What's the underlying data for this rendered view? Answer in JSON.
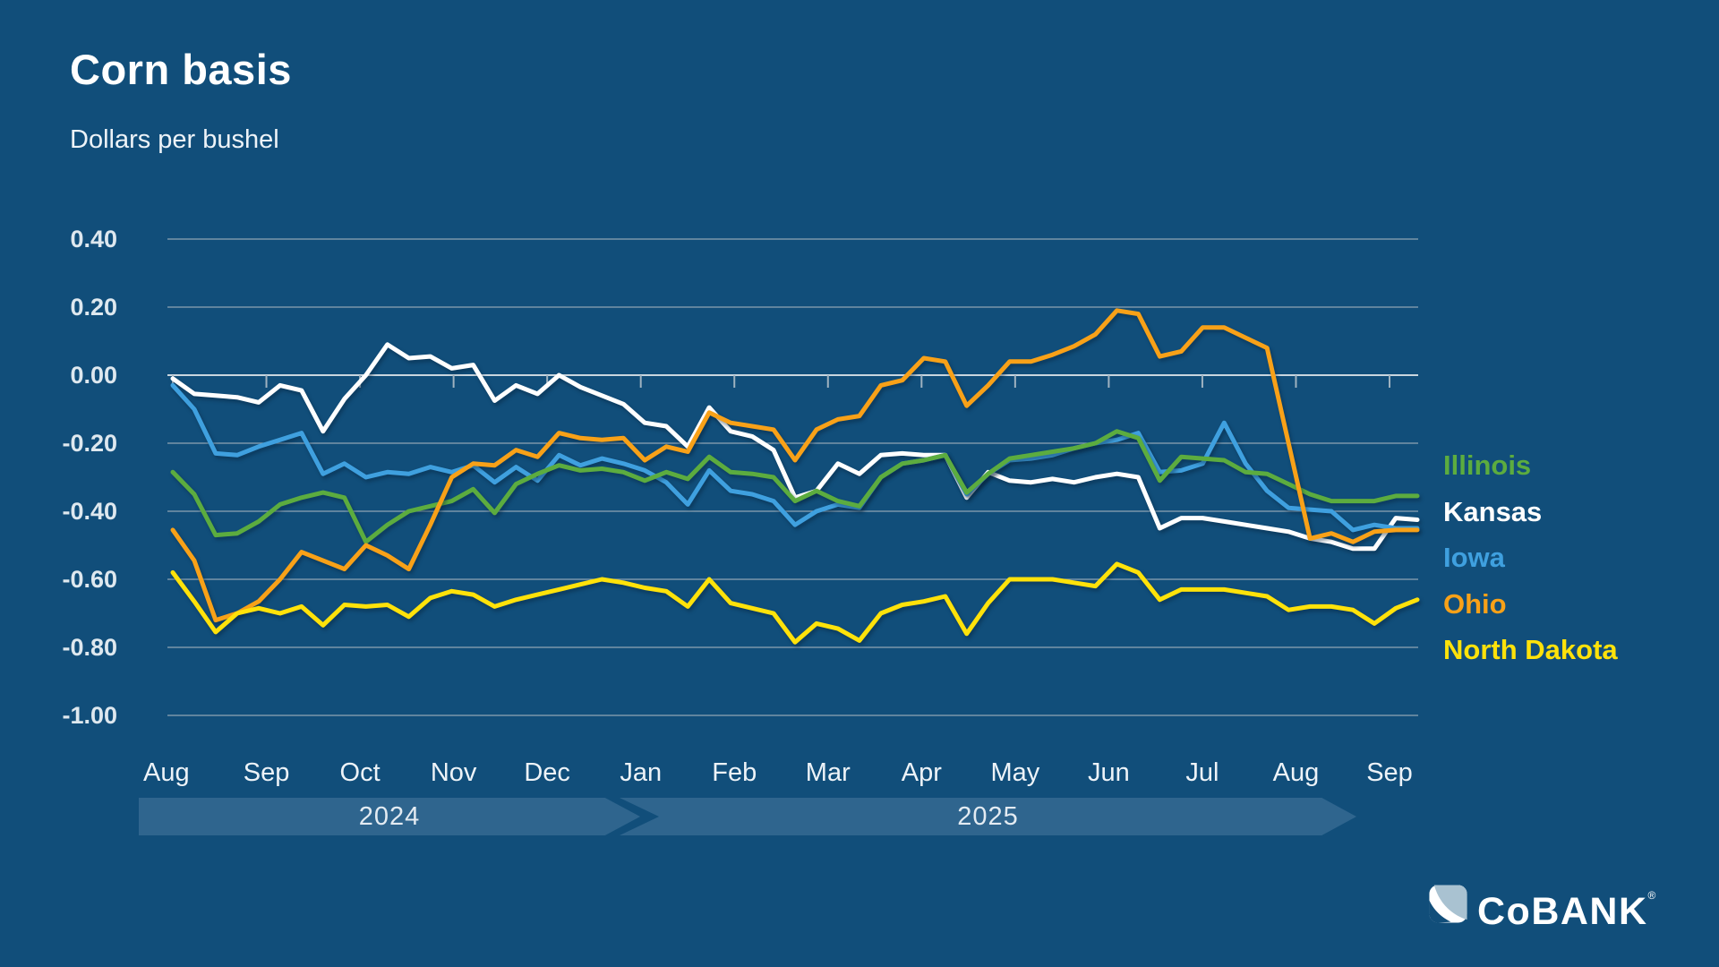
{
  "title": "Corn basis",
  "subtitle": "Dollars per bushel",
  "timeline": {
    "left_label": "2024",
    "right_label": "2025"
  },
  "logo": {
    "text": "CoBANK",
    "reg": "®"
  },
  "colors": {
    "background": "#114E7A",
    "gridline": "#8FA5B5",
    "zero_line": "#C9D6DF",
    "tick": "#9FB2C0",
    "timeline_bar": "#2F658E",
    "y_label_text": "#DEE8EF",
    "month_label_text": "#EDF3F8",
    "logo_mark_fill": "#A9C2D1"
  },
  "chart_data": {
    "type": "line",
    "title": "Corn basis",
    "ylabel": "Dollars per bushel",
    "ylim": [
      -1.0,
      0.4
    ],
    "grid": true,
    "legend_position": "right",
    "ytick_values": [
      0.4,
      0.2,
      0.0,
      -0.2,
      -0.4,
      -0.6,
      -0.8,
      -1.0
    ],
    "ytick_labels": [
      "0.40",
      "0.20",
      "0.00",
      "-0.20",
      "-0.40",
      "-0.60",
      "-0.80",
      "-1.00"
    ],
    "x_months": [
      "Aug",
      "Sep",
      "Oct",
      "Nov",
      "Dec",
      "Jan",
      "Feb",
      "Mar",
      "Apr",
      "May",
      "Jun",
      "Jul",
      "Aug",
      "Sep"
    ],
    "x_resolution": "weekly, Aug 2024 - Sep 2025",
    "series": [
      {
        "name": "Illinois",
        "color": "#5CAC3F",
        "values": [
          -0.285,
          -0.35,
          -0.47,
          -0.465,
          -0.43,
          -0.38,
          -0.36,
          -0.345,
          -0.36,
          -0.49,
          -0.44,
          -0.4,
          -0.385,
          -0.37,
          -0.335,
          -0.405,
          -0.32,
          -0.29,
          -0.265,
          -0.28,
          -0.275,
          -0.285,
          -0.31,
          -0.285,
          -0.305,
          -0.24,
          -0.285,
          -0.29,
          -0.3,
          -0.37,
          -0.34,
          -0.37,
          -0.385,
          -0.3,
          -0.26,
          -0.25,
          -0.235,
          -0.345,
          -0.29,
          -0.245,
          -0.235,
          -0.225,
          -0.215,
          -0.2,
          -0.165,
          -0.185,
          -0.31,
          -0.24,
          -0.245,
          -0.25,
          -0.285,
          -0.29,
          -0.32,
          -0.35,
          -0.37,
          -0.37,
          -0.37,
          -0.355,
          -0.355
        ]
      },
      {
        "name": "Kansas",
        "color": "#FFFFFF",
        "values": [
          -0.01,
          -0.055,
          -0.06,
          -0.065,
          -0.08,
          -0.03,
          -0.045,
          -0.165,
          -0.07,
          0.0,
          0.09,
          0.05,
          0.055,
          0.02,
          0.03,
          -0.075,
          -0.03,
          -0.055,
          0.0,
          -0.035,
          -0.06,
          -0.085,
          -0.14,
          -0.15,
          -0.21,
          -0.095,
          -0.165,
          -0.18,
          -0.22,
          -0.36,
          -0.34,
          -0.26,
          -0.29,
          -0.235,
          -0.23,
          -0.235,
          -0.235,
          -0.36,
          -0.285,
          -0.31,
          -0.315,
          -0.305,
          -0.315,
          -0.3,
          -0.29,
          -0.3,
          -0.45,
          -0.42,
          -0.42,
          -0.43,
          -0.44,
          -0.45,
          -0.46,
          -0.48,
          -0.49,
          -0.51,
          -0.51,
          -0.42,
          -0.425
        ]
      },
      {
        "name": "Iowa",
        "color": "#3FA0DF",
        "values": [
          -0.03,
          -0.1,
          -0.23,
          -0.235,
          -0.21,
          -0.19,
          -0.17,
          -0.29,
          -0.26,
          -0.3,
          -0.285,
          -0.29,
          -0.27,
          -0.285,
          -0.265,
          -0.315,
          -0.27,
          -0.31,
          -0.235,
          -0.265,
          -0.245,
          -0.26,
          -0.28,
          -0.315,
          -0.38,
          -0.28,
          -0.34,
          -0.35,
          -0.37,
          -0.44,
          -0.4,
          -0.38,
          -0.39,
          -0.3,
          -0.26,
          -0.25,
          -0.235,
          -0.35,
          -0.29,
          -0.25,
          -0.245,
          -0.235,
          -0.215,
          -0.2,
          -0.19,
          -0.17,
          -0.285,
          -0.28,
          -0.26,
          -0.14,
          -0.26,
          -0.34,
          -0.39,
          -0.395,
          -0.4,
          -0.455,
          -0.44,
          -0.45,
          -0.45
        ]
      },
      {
        "name": "Ohio",
        "color": "#F8A118",
        "values": [
          -0.455,
          -0.545,
          -0.72,
          -0.7,
          -0.665,
          -0.6,
          -0.52,
          -0.545,
          -0.57,
          -0.5,
          -0.53,
          -0.57,
          -0.44,
          -0.3,
          -0.26,
          -0.265,
          -0.22,
          -0.24,
          -0.17,
          -0.185,
          -0.19,
          -0.185,
          -0.25,
          -0.21,
          -0.225,
          -0.11,
          -0.14,
          -0.15,
          -0.16,
          -0.25,
          -0.16,
          -0.13,
          -0.12,
          -0.03,
          -0.015,
          0.05,
          0.04,
          -0.09,
          -0.03,
          0.04,
          0.04,
          0.06,
          0.085,
          0.12,
          0.19,
          0.18,
          0.055,
          0.07,
          0.14,
          0.14,
          0.11,
          0.08,
          -0.2,
          -0.48,
          -0.465,
          -0.49,
          -0.46,
          -0.455,
          -0.455
        ]
      },
      {
        "name": "North Dakota",
        "color": "#FFE20A",
        "values": [
          -0.58,
          -0.665,
          -0.755,
          -0.7,
          -0.685,
          -0.7,
          -0.68,
          -0.735,
          -0.675,
          -0.68,
          -0.675,
          -0.71,
          -0.655,
          -0.635,
          -0.645,
          -0.68,
          -0.66,
          -0.645,
          -0.63,
          -0.615,
          -0.6,
          -0.61,
          -0.625,
          -0.635,
          -0.68,
          -0.6,
          -0.67,
          -0.685,
          -0.7,
          -0.785,
          -0.73,
          -0.745,
          -0.78,
          -0.7,
          -0.675,
          -0.665,
          -0.65,
          -0.76,
          -0.67,
          -0.6,
          -0.6,
          -0.6,
          -0.61,
          -0.62,
          -0.555,
          -0.58,
          -0.66,
          -0.63,
          -0.63,
          -0.63,
          -0.64,
          -0.65,
          -0.69,
          -0.68,
          -0.68,
          -0.69,
          -0.73,
          -0.685,
          -0.66
        ]
      }
    ]
  }
}
